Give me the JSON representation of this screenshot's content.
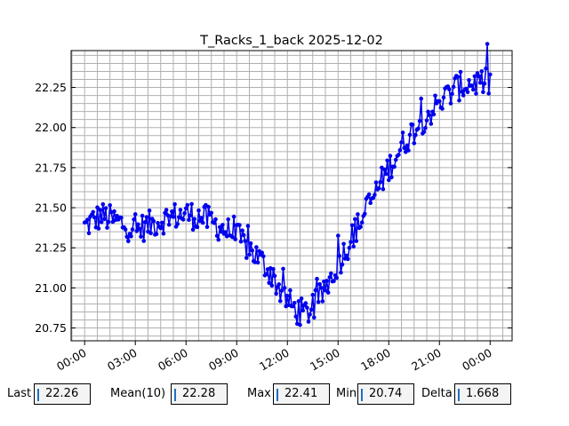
{
  "chart_data": {
    "type": "line",
    "title": "T_Racks_1_back 2025-12-02",
    "xlabel": "",
    "ylabel": "",
    "x_ticks": [
      "00:00",
      "03:00",
      "06:00",
      "09:00",
      "12:00",
      "15:00",
      "18:00",
      "21:00",
      "00:00"
    ],
    "x_tick_hours": [
      0,
      3,
      6,
      9,
      12,
      15,
      18,
      21,
      24
    ],
    "xlim_hours": [
      -0.8,
      25.3
    ],
    "y_ticks": [
      "20.75",
      "21.00",
      "21.25",
      "21.50",
      "21.75",
      "22.00",
      "22.25"
    ],
    "y_tick_values": [
      20.75,
      21.0,
      21.25,
      21.5,
      21.75,
      22.0,
      22.25
    ],
    "ylim": [
      20.67,
      22.48
    ],
    "grid": true,
    "series_color": "#0000ee",
    "trend": {
      "x_hours": [
        0.0,
        0.5,
        1.0,
        2.0,
        3.0,
        4.0,
        5.0,
        6.0,
        7.0,
        8.0,
        9.0,
        10.0,
        11.0,
        11.5,
        12.0,
        12.5,
        13.0,
        13.5,
        14.0,
        15.0,
        16.0,
        17.0,
        18.0,
        19.0,
        20.0,
        21.0,
        22.0,
        23.0,
        24.0
      ],
      "values": [
        21.38,
        21.42,
        21.45,
        21.41,
        21.36,
        21.4,
        21.44,
        21.46,
        21.44,
        21.38,
        21.32,
        21.22,
        21.1,
        21.0,
        20.92,
        20.86,
        20.84,
        20.87,
        20.95,
        21.15,
        21.35,
        21.55,
        21.75,
        21.92,
        22.05,
        22.15,
        22.25,
        22.28,
        22.28
      ]
    },
    "noise_amplitude": 0.09,
    "samples_per_hour": 12
  },
  "stats": {
    "last": {
      "label": "Last",
      "value": "22.26"
    },
    "mean": {
      "label": "Mean(10)",
      "value": "22.28"
    },
    "max": {
      "label": "Max",
      "value": "22.41"
    },
    "min": {
      "label": "Min",
      "value": "20.74"
    },
    "delta": {
      "label": "Delta",
      "value": "1.668"
    }
  }
}
